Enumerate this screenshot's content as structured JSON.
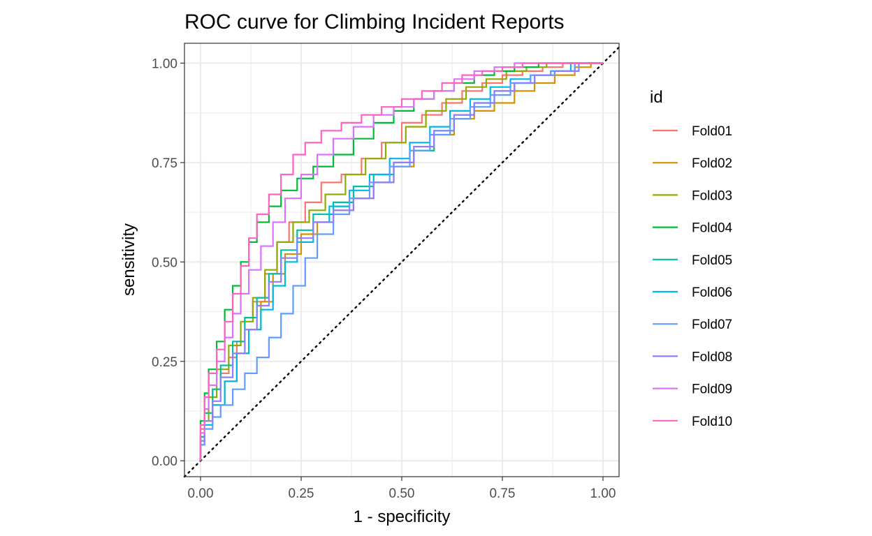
{
  "chart_data": {
    "type": "line",
    "title": "ROC curve for Climbing Incident Reports",
    "xlabel": "1 - specificity",
    "ylabel": "sensitivity",
    "xlim": [
      -0.04,
      1.04
    ],
    "ylim": [
      -0.04,
      1.05
    ],
    "x_ticks": [
      "0.00",
      "0.25",
      "0.50",
      "0.75",
      "1.00"
    ],
    "y_ticks": [
      "0.00",
      "0.25",
      "0.50",
      "0.75",
      "1.00"
    ],
    "grid": true,
    "legend": {
      "title": "id",
      "position": "right"
    },
    "diagonal": {
      "style": "dotted",
      "points": [
        [
          0,
          0
        ],
        [
          1,
          1
        ]
      ]
    },
    "series": [
      {
        "name": "Fold01",
        "color": "#F8766D",
        "points": [
          [
            0,
            0
          ],
          [
            0.01,
            0.08
          ],
          [
            0.03,
            0.12
          ],
          [
            0.05,
            0.18
          ],
          [
            0.07,
            0.22
          ],
          [
            0.09,
            0.26
          ],
          [
            0.11,
            0.3
          ],
          [
            0.13,
            0.36
          ],
          [
            0.16,
            0.4
          ],
          [
            0.19,
            0.47
          ],
          [
            0.22,
            0.55
          ],
          [
            0.26,
            0.6
          ],
          [
            0.3,
            0.65
          ],
          [
            0.35,
            0.7
          ],
          [
            0.4,
            0.72
          ],
          [
            0.45,
            0.76
          ],
          [
            0.5,
            0.8
          ],
          [
            0.55,
            0.85
          ],
          [
            0.6,
            0.87
          ],
          [
            0.65,
            0.9
          ],
          [
            0.7,
            0.93
          ],
          [
            0.75,
            0.95
          ],
          [
            0.8,
            0.97
          ],
          [
            0.85,
            0.98
          ],
          [
            0.9,
            0.99
          ],
          [
            1,
            1
          ]
        ]
      },
      {
        "name": "Fold02",
        "color": "#D39200",
        "points": [
          [
            0,
            0
          ],
          [
            0.01,
            0.06
          ],
          [
            0.03,
            0.1
          ],
          [
            0.06,
            0.14
          ],
          [
            0.09,
            0.2
          ],
          [
            0.12,
            0.27
          ],
          [
            0.15,
            0.33
          ],
          [
            0.18,
            0.4
          ],
          [
            0.21,
            0.47
          ],
          [
            0.25,
            0.52
          ],
          [
            0.29,
            0.57
          ],
          [
            0.33,
            0.6
          ],
          [
            0.38,
            0.63
          ],
          [
            0.43,
            0.66
          ],
          [
            0.48,
            0.7
          ],
          [
            0.53,
            0.74
          ],
          [
            0.58,
            0.78
          ],
          [
            0.63,
            0.82
          ],
          [
            0.68,
            0.86
          ],
          [
            0.73,
            0.88
          ],
          [
            0.78,
            0.9
          ],
          [
            0.83,
            0.93
          ],
          [
            0.88,
            0.95
          ],
          [
            0.93,
            0.97
          ],
          [
            0.97,
            0.99
          ],
          [
            1,
            1
          ]
        ]
      },
      {
        "name": "Fold03",
        "color": "#93AA00",
        "points": [
          [
            0,
            0
          ],
          [
            0.01,
            0.05
          ],
          [
            0.02,
            0.1
          ],
          [
            0.04,
            0.16
          ],
          [
            0.07,
            0.23
          ],
          [
            0.1,
            0.29
          ],
          [
            0.13,
            0.35
          ],
          [
            0.16,
            0.41
          ],
          [
            0.19,
            0.48
          ],
          [
            0.23,
            0.55
          ],
          [
            0.27,
            0.6
          ],
          [
            0.31,
            0.63
          ],
          [
            0.36,
            0.67
          ],
          [
            0.41,
            0.72
          ],
          [
            0.46,
            0.76
          ],
          [
            0.51,
            0.8
          ],
          [
            0.56,
            0.84
          ],
          [
            0.61,
            0.88
          ],
          [
            0.66,
            0.91
          ],
          [
            0.71,
            0.94
          ],
          [
            0.76,
            0.96
          ],
          [
            0.81,
            0.98
          ],
          [
            0.86,
            0.99
          ],
          [
            1,
            1
          ]
        ]
      },
      {
        "name": "Fold04",
        "color": "#00BA38",
        "points": [
          [
            0,
            0
          ],
          [
            0.01,
            0.1
          ],
          [
            0.02,
            0.17
          ],
          [
            0.04,
            0.23
          ],
          [
            0.06,
            0.3
          ],
          [
            0.08,
            0.38
          ],
          [
            0.1,
            0.44
          ],
          [
            0.12,
            0.5
          ],
          [
            0.14,
            0.55
          ],
          [
            0.17,
            0.6
          ],
          [
            0.2,
            0.64
          ],
          [
            0.24,
            0.68
          ],
          [
            0.28,
            0.71
          ],
          [
            0.33,
            0.74
          ],
          [
            0.38,
            0.77
          ],
          [
            0.43,
            0.81
          ],
          [
            0.48,
            0.85
          ],
          [
            0.53,
            0.88
          ],
          [
            0.58,
            0.91
          ],
          [
            0.63,
            0.93
          ],
          [
            0.68,
            0.95
          ],
          [
            0.73,
            0.97
          ],
          [
            0.78,
            0.98
          ],
          [
            0.84,
            0.99
          ],
          [
            1,
            1
          ]
        ]
      },
      {
        "name": "Fold05",
        "color": "#00C19F",
        "points": [
          [
            0,
            0
          ],
          [
            0.01,
            0.06
          ],
          [
            0.03,
            0.12
          ],
          [
            0.05,
            0.18
          ],
          [
            0.08,
            0.24
          ],
          [
            0.11,
            0.3
          ],
          [
            0.14,
            0.36
          ],
          [
            0.17,
            0.41
          ],
          [
            0.2,
            0.47
          ],
          [
            0.24,
            0.53
          ],
          [
            0.28,
            0.58
          ],
          [
            0.33,
            0.62
          ],
          [
            0.38,
            0.65
          ],
          [
            0.43,
            0.69
          ],
          [
            0.48,
            0.72
          ],
          [
            0.53,
            0.75
          ],
          [
            0.58,
            0.78
          ],
          [
            0.63,
            0.83
          ],
          [
            0.68,
            0.87
          ],
          [
            0.73,
            0.9
          ],
          [
            0.78,
            0.93
          ],
          [
            0.83,
            0.95
          ],
          [
            0.88,
            0.97
          ],
          [
            0.93,
            0.98
          ],
          [
            1,
            1
          ]
        ]
      },
      {
        "name": "Fold06",
        "color": "#00B9E3",
        "points": [
          [
            0,
            0
          ],
          [
            0.01,
            0.04
          ],
          [
            0.03,
            0.09
          ],
          [
            0.06,
            0.14
          ],
          [
            0.09,
            0.2
          ],
          [
            0.12,
            0.27
          ],
          [
            0.15,
            0.33
          ],
          [
            0.18,
            0.38
          ],
          [
            0.21,
            0.44
          ],
          [
            0.24,
            0.5
          ],
          [
            0.28,
            0.55
          ],
          [
            0.32,
            0.6
          ],
          [
            0.37,
            0.64
          ],
          [
            0.42,
            0.68
          ],
          [
            0.47,
            0.72
          ],
          [
            0.52,
            0.76
          ],
          [
            0.57,
            0.8
          ],
          [
            0.62,
            0.84
          ],
          [
            0.67,
            0.88
          ],
          [
            0.72,
            0.91
          ],
          [
            0.77,
            0.94
          ],
          [
            0.82,
            0.96
          ],
          [
            0.87,
            0.97
          ],
          [
            0.92,
            0.98
          ],
          [
            1,
            1
          ]
        ]
      },
      {
        "name": "Fold07",
        "color": "#619CFF",
        "points": [
          [
            0,
            0
          ],
          [
            0.01,
            0.04
          ],
          [
            0.03,
            0.08
          ],
          [
            0.05,
            0.11
          ],
          [
            0.08,
            0.14
          ],
          [
            0.11,
            0.18
          ],
          [
            0.14,
            0.22
          ],
          [
            0.17,
            0.26
          ],
          [
            0.2,
            0.31
          ],
          [
            0.23,
            0.37
          ],
          [
            0.26,
            0.44
          ],
          [
            0.29,
            0.51
          ],
          [
            0.33,
            0.57
          ],
          [
            0.37,
            0.62
          ],
          [
            0.42,
            0.66
          ],
          [
            0.47,
            0.7
          ],
          [
            0.52,
            0.74
          ],
          [
            0.57,
            0.78
          ],
          [
            0.62,
            0.82
          ],
          [
            0.67,
            0.86
          ],
          [
            0.72,
            0.89
          ],
          [
            0.77,
            0.92
          ],
          [
            0.82,
            0.95
          ],
          [
            0.87,
            0.97
          ],
          [
            0.93,
            0.98
          ],
          [
            1,
            1
          ]
        ]
      },
      {
        "name": "Fold08",
        "color": "#8F7FFF",
        "points": [
          [
            0,
            0
          ],
          [
            0.01,
            0.05
          ],
          [
            0.03,
            0.1
          ],
          [
            0.05,
            0.15
          ],
          [
            0.08,
            0.21
          ],
          [
            0.11,
            0.27
          ],
          [
            0.14,
            0.33
          ],
          [
            0.17,
            0.39
          ],
          [
            0.2,
            0.45
          ],
          [
            0.24,
            0.51
          ],
          [
            0.28,
            0.56
          ],
          [
            0.33,
            0.6
          ],
          [
            0.38,
            0.63
          ],
          [
            0.43,
            0.66
          ],
          [
            0.48,
            0.7
          ],
          [
            0.53,
            0.75
          ],
          [
            0.58,
            0.79
          ],
          [
            0.63,
            0.83
          ],
          [
            0.68,
            0.87
          ],
          [
            0.73,
            0.9
          ],
          [
            0.78,
            0.93
          ],
          [
            0.83,
            0.95
          ],
          [
            0.88,
            0.97
          ],
          [
            0.94,
            0.98
          ],
          [
            1,
            1
          ]
        ]
      },
      {
        "name": "Fold09",
        "color": "#DB72FB",
        "points": [
          [
            0,
            0
          ],
          [
            0.01,
            0.07
          ],
          [
            0.02,
            0.13
          ],
          [
            0.04,
            0.19
          ],
          [
            0.06,
            0.25
          ],
          [
            0.08,
            0.31
          ],
          [
            0.1,
            0.37
          ],
          [
            0.12,
            0.42
          ],
          [
            0.15,
            0.48
          ],
          [
            0.18,
            0.54
          ],
          [
            0.21,
            0.6
          ],
          [
            0.25,
            0.66
          ],
          [
            0.29,
            0.72
          ],
          [
            0.33,
            0.77
          ],
          [
            0.38,
            0.81
          ],
          [
            0.43,
            0.84
          ],
          [
            0.48,
            0.87
          ],
          [
            0.53,
            0.89
          ],
          [
            0.58,
            0.91
          ],
          [
            0.63,
            0.93
          ],
          [
            0.68,
            0.96
          ],
          [
            0.73,
            0.98
          ],
          [
            0.78,
            0.99
          ],
          [
            1,
            1
          ]
        ]
      },
      {
        "name": "Fold10",
        "color": "#FF61C3",
        "points": [
          [
            0,
            0
          ],
          [
            0.01,
            0.09
          ],
          [
            0.02,
            0.16
          ],
          [
            0.04,
            0.22
          ],
          [
            0.06,
            0.28
          ],
          [
            0.08,
            0.35
          ],
          [
            0.1,
            0.42
          ],
          [
            0.12,
            0.49
          ],
          [
            0.14,
            0.56
          ],
          [
            0.17,
            0.62
          ],
          [
            0.2,
            0.67
          ],
          [
            0.23,
            0.72
          ],
          [
            0.26,
            0.77
          ],
          [
            0.3,
            0.8
          ],
          [
            0.35,
            0.83
          ],
          [
            0.4,
            0.85
          ],
          [
            0.45,
            0.87
          ],
          [
            0.5,
            0.89
          ],
          [
            0.55,
            0.91
          ],
          [
            0.6,
            0.93
          ],
          [
            0.65,
            0.95
          ],
          [
            0.7,
            0.97
          ],
          [
            0.75,
            0.98
          ],
          [
            0.8,
            0.99
          ],
          [
            1,
            1
          ]
        ]
      }
    ]
  }
}
